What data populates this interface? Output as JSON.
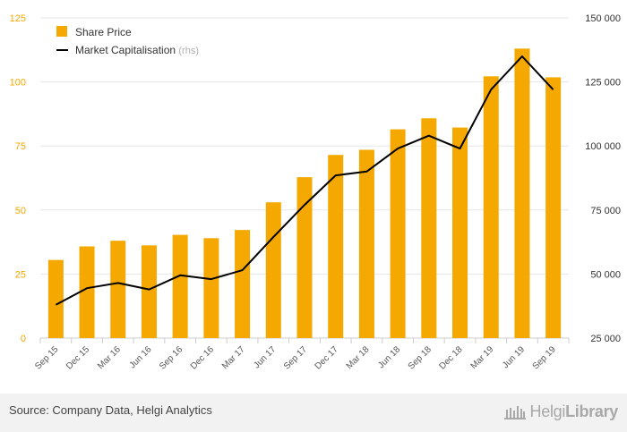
{
  "chart_data": {
    "type": "bar+line",
    "categories": [
      "Sep 15",
      "Dec 15",
      "Mar 16",
      "Jun 16",
      "Sep 16",
      "Dec 16",
      "Mar 17",
      "Jun 17",
      "Sep 17",
      "Dec 17",
      "Mar 18",
      "Jun 18",
      "Sep 18",
      "Dec 18",
      "Mar 19",
      "Jun 19",
      "Sep 19"
    ],
    "series": [
      {
        "name": "Share Price",
        "type": "bar",
        "axis": "left",
        "color": "#f5a800",
        "values": [
          30.5,
          35.8,
          38.0,
          36.2,
          40.3,
          39.0,
          42.2,
          53.0,
          62.8,
          71.5,
          73.5,
          81.5,
          85.8,
          82.2,
          102.2,
          113.0,
          101.8
        ]
      },
      {
        "name": "Market Capitalisation",
        "name_suffix": "(rhs)",
        "type": "line",
        "axis": "right",
        "color": "#000000",
        "values": [
          38000,
          44500,
          46500,
          44000,
          49500,
          48000,
          51500,
          64500,
          77000,
          88500,
          90000,
          99000,
          104000,
          99000,
          122000,
          135000,
          122000
        ]
      }
    ],
    "y_left": {
      "ticks": [
        0,
        25,
        50,
        75,
        100,
        125
      ],
      "tick_labels": [
        "0",
        "25",
        "50",
        "75",
        "100",
        "125"
      ],
      "range": [
        0,
        125
      ],
      "color": "#f5a800"
    },
    "y_right": {
      "ticks": [
        25000,
        50000,
        75000,
        100000,
        125000,
        150000
      ],
      "tick_labels": [
        "25 000",
        "50 000",
        "75 000",
        "100 000",
        "125 000",
        "150 000"
      ],
      "range": [
        25000,
        150000
      ]
    },
    "grid": true,
    "legend_position": "top-left"
  },
  "footer": {
    "source": "Source: Company Data, Helgi Analytics",
    "brand_part1": "Helgi",
    "brand_part2": "Library"
  }
}
